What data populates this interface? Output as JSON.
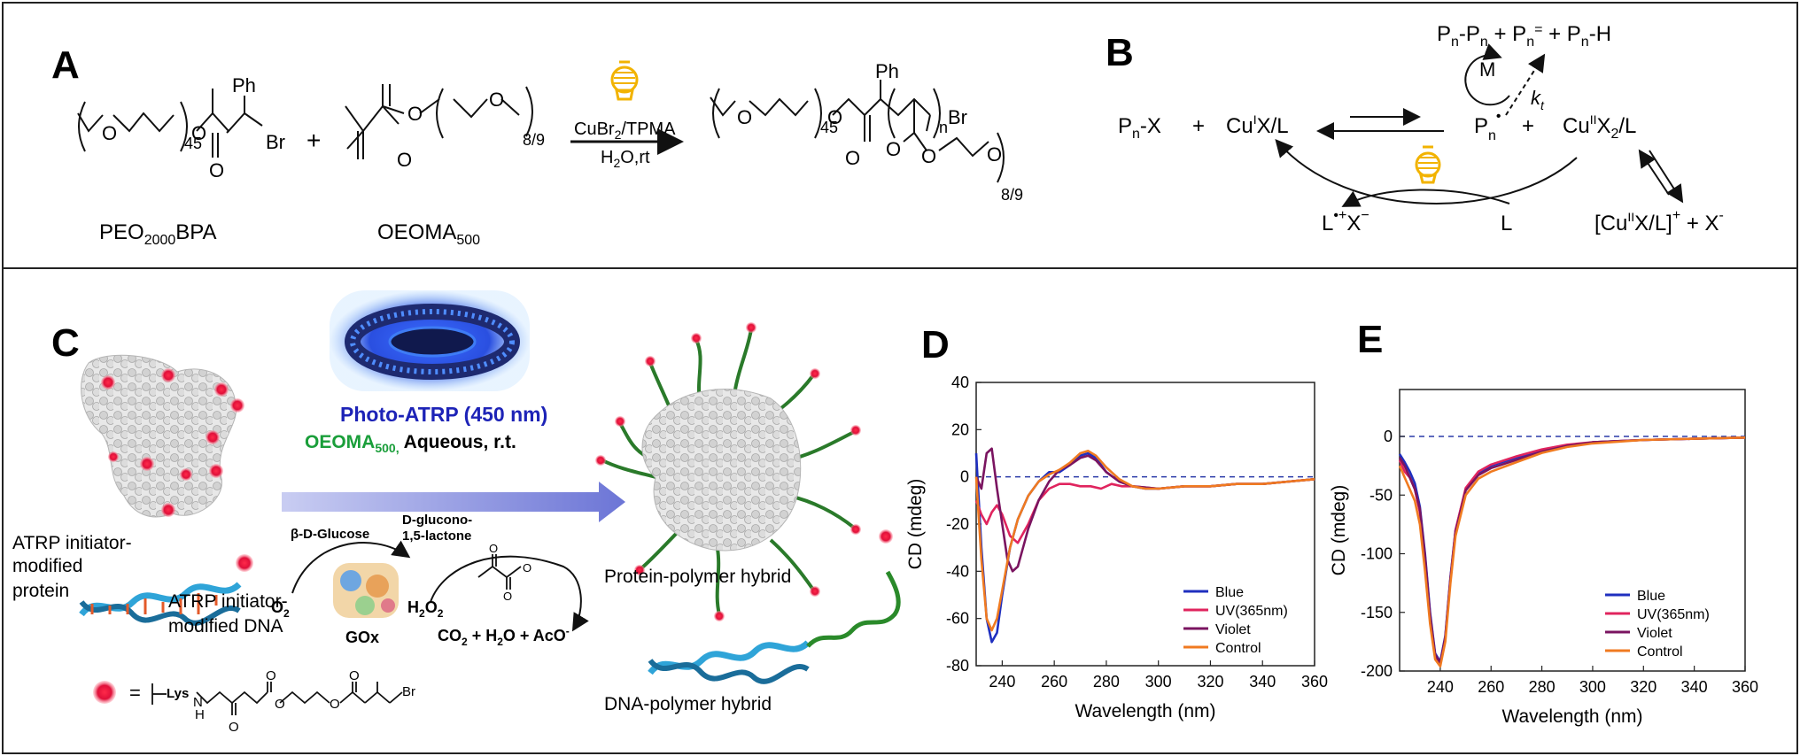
{
  "panels": {
    "A": {
      "label": "A",
      "reactant1": "PEO2000BPA",
      "reactant1_base": "PEO",
      "reactant1_sub": "2000",
      "reactant1_tail": "BPA",
      "reactant2_base": "OEOMA",
      "reactant2_sub": "500",
      "plus": "+",
      "conditions_top": "CuBr2/TPMA",
      "conditions_bottom": "H2O,rt",
      "ph": "Ph",
      "br": "Br",
      "n45": "45",
      "n89": "8/9",
      "n": "n",
      "o": "O"
    },
    "B": {
      "label": "B",
      "pnx": "Pn-X",
      "plus": "+",
      "cu1": "CuIX/L",
      "pn_radical": "Pn•",
      "cu2": "CuIIX2/L",
      "termination": "Pn-Pn + Pn= + Pn-H",
      "M": "M",
      "kt": "kt",
      "lx": "L•+X−",
      "L": "L",
      "cu_complex": "[CuIIX/L]+ + X-"
    },
    "C": {
      "label": "C",
      "photo_atrp": "Photo-ATRP (450 nm)",
      "conditions": "OEOMA500, Aqueous, r.t.",
      "initiator_protein": "ATRP initiator-modified protein",
      "initiator_dna": "ATRP initiator-modified DNA",
      "glucose": "β-D-Glucose",
      "gluconolactone": "D-glucono-1,5-lactone",
      "o2": "O2",
      "h2o2": "H2O2",
      "gox": "GOx",
      "products": "CO2 + H2O + AcO-",
      "protein_hybrid": "Protein-polymer hybrid",
      "dna_hybrid": "DNA-polymer hybrid",
      "lys": "Lys",
      "legend_eq": "=",
      "nh": "N",
      "h": "H"
    }
  },
  "chart_data": [
    {
      "panel": "D",
      "type": "line",
      "xlabel": "Wavelength (nm)",
      "ylabel": "CD (mdeg)",
      "xlim": [
        230,
        360
      ],
      "ylim": [
        -80,
        40
      ],
      "xticks": [
        240,
        260,
        280,
        300,
        320,
        340,
        360
      ],
      "yticks": [
        40,
        20,
        0,
        -20,
        -40,
        -60,
        -80
      ],
      "zero_line": true,
      "legend_position": "bottom-right",
      "series": [
        {
          "name": "Blue",
          "color": "#1f2fbf",
          "x": [
            230,
            232,
            234,
            236,
            238,
            240,
            243,
            246,
            250,
            254,
            258,
            262,
            266,
            270,
            273,
            276,
            280,
            285,
            290,
            295,
            300,
            310,
            320,
            330,
            340,
            350,
            360
          ],
          "y": [
            10,
            -30,
            -60,
            -70,
            -66,
            -50,
            -30,
            -18,
            -8,
            -2,
            2,
            2,
            5,
            9,
            10,
            8,
            2,
            -2,
            -4,
            -5,
            -5,
            -4,
            -4,
            -3,
            -3,
            -2,
            -1
          ]
        },
        {
          "name": "UV(365nm)",
          "color": "#e0245e",
          "x": [
            230,
            232,
            234,
            236,
            238,
            240,
            243,
            246,
            250,
            254,
            258,
            262,
            266,
            270,
            274,
            278,
            282,
            286,
            290,
            300,
            310,
            320,
            330,
            340,
            350,
            360
          ],
          "y": [
            -10,
            -16,
            -20,
            -15,
            -12,
            -16,
            -25,
            -28,
            -20,
            -10,
            -5,
            -3,
            -3,
            -4,
            -4,
            -5,
            -3,
            -4,
            -4,
            -5,
            -4,
            -4,
            -3,
            -3,
            -2,
            -1
          ]
        },
        {
          "name": "Violet",
          "color": "#7a1460",
          "x": [
            230,
            232,
            234,
            236,
            238,
            240,
            242,
            244,
            246,
            248,
            250,
            254,
            258,
            262,
            266,
            270,
            273,
            276,
            280,
            285,
            290,
            300,
            310,
            320,
            330,
            340,
            350,
            360
          ],
          "y": [
            0,
            -5,
            10,
            12,
            -5,
            -20,
            -35,
            -40,
            -38,
            -30,
            -22,
            -10,
            -2,
            3,
            5,
            8,
            9,
            7,
            2,
            -2,
            -4,
            -5,
            -4,
            -4,
            -3,
            -3,
            -2,
            -1
          ]
        },
        {
          "name": "Control",
          "color": "#f07a20",
          "x": [
            230,
            232,
            234,
            236,
            238,
            240,
            243,
            246,
            250,
            254,
            258,
            262,
            266,
            270,
            273,
            276,
            280,
            285,
            290,
            295,
            300,
            310,
            320,
            330,
            340,
            350,
            360
          ],
          "y": [
            0,
            -35,
            -60,
            -65,
            -60,
            -48,
            -30,
            -18,
            -8,
            -2,
            1,
            3,
            6,
            10,
            11,
            9,
            4,
            -1,
            -4,
            -5,
            -5,
            -4,
            -4,
            -3,
            -3,
            -2,
            -1
          ]
        }
      ]
    },
    {
      "panel": "E",
      "type": "line",
      "xlabel": "Wavelength (nm)",
      "ylabel": "CD (mdeg)",
      "xlim": [
        224,
        360
      ],
      "ylim": [
        -200,
        40
      ],
      "xticks": [
        240,
        260,
        280,
        300,
        320,
        340,
        360
      ],
      "yticks": [
        0,
        -50,
        -100,
        -150,
        -200
      ],
      "zero_line": true,
      "legend_position": "bottom-right",
      "series": [
        {
          "name": "Blue",
          "color": "#1f2fbf",
          "x": [
            224,
            226,
            228,
            230,
            232,
            234,
            236,
            238,
            240,
            242,
            244,
            246,
            250,
            255,
            260,
            270,
            280,
            290,
            300,
            320,
            340,
            360
          ],
          "y": [
            -15,
            -22,
            -30,
            -40,
            -60,
            -100,
            -150,
            -185,
            -192,
            -170,
            -120,
            -80,
            -45,
            -32,
            -25,
            -18,
            -12,
            -8,
            -5,
            -3,
            -2,
            -1
          ]
        },
        {
          "name": "UV(365nm)",
          "color": "#e0245e",
          "x": [
            224,
            226,
            228,
            230,
            232,
            234,
            236,
            238,
            240,
            242,
            244,
            246,
            250,
            255,
            260,
            270,
            280,
            290,
            300,
            320,
            340,
            360
          ],
          "y": [
            -20,
            -30,
            -35,
            -45,
            -65,
            -105,
            -155,
            -188,
            -194,
            -172,
            -122,
            -80,
            -44,
            -30,
            -24,
            -17,
            -11,
            -7,
            -5,
            -3,
            -2,
            -1
          ]
        },
        {
          "name": "Violet",
          "color": "#7a1460",
          "x": [
            224,
            226,
            228,
            230,
            232,
            234,
            236,
            238,
            240,
            242,
            244,
            246,
            250,
            255,
            260,
            270,
            280,
            290,
            300,
            320,
            340,
            360
          ],
          "y": [
            -18,
            -25,
            -35,
            -45,
            -62,
            -102,
            -152,
            -186,
            -193,
            -171,
            -121,
            -82,
            -46,
            -33,
            -27,
            -20,
            -13,
            -8,
            -5,
            -3,
            -2,
            -1
          ]
        },
        {
          "name": "Control",
          "color": "#f07a20",
          "x": [
            224,
            226,
            228,
            230,
            232,
            234,
            236,
            238,
            240,
            242,
            244,
            246,
            250,
            255,
            260,
            270,
            280,
            290,
            300,
            320,
            340,
            360
          ],
          "y": [
            -25,
            -35,
            -45,
            -55,
            -75,
            -115,
            -160,
            -190,
            -196,
            -175,
            -125,
            -85,
            -50,
            -36,
            -30,
            -22,
            -14,
            -9,
            -6,
            -3,
            -2,
            -1
          ]
        }
      ]
    }
  ]
}
